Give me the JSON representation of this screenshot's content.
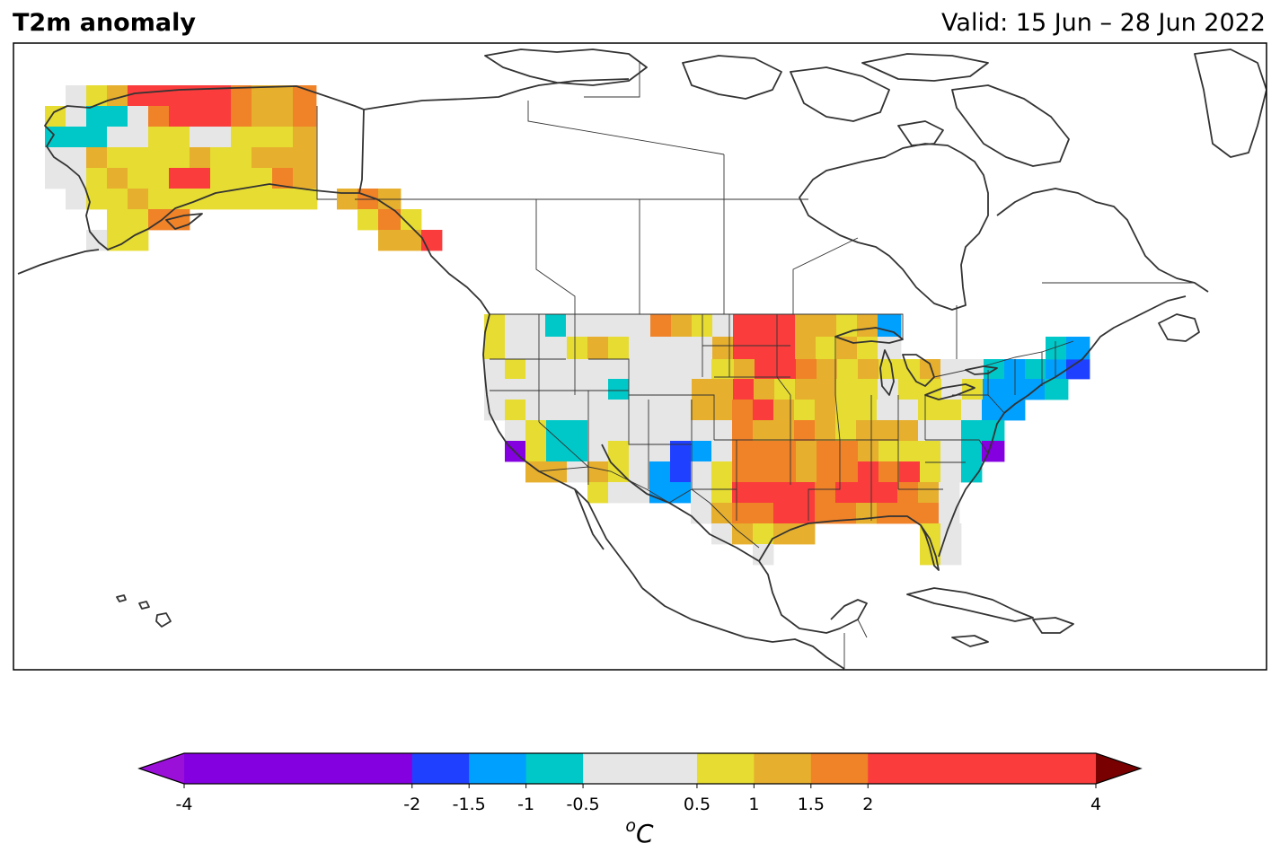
{
  "header": {
    "variable_title": "T2m anomaly",
    "valid_label": "Valid: 15 Jun – 28 Jun 2022"
  },
  "colorbar": {
    "unit_base": "C",
    "unit_sup": "o",
    "levels": [
      -4,
      -2,
      -1.5,
      -1,
      -0.5,
      0.5,
      1,
      1.5,
      2,
      4
    ],
    "tick_labels": [
      "-4",
      "-2",
      "-1.5",
      "-1",
      "-0.5",
      "0.5",
      "1",
      "1.5",
      "2",
      "4"
    ],
    "colors": [
      "#8400e0",
      "#2040ff",
      "#00a0ff",
      "#00c8c8",
      "#e6e6e6",
      "#e6dc32",
      "#e6af2d",
      "#f08228",
      "#fa3c3c"
    ],
    "under_color": "#9a10d8",
    "over_color": "#780000"
  },
  "map": {
    "region": "North America",
    "coastline_color": "#333333",
    "frame_color": "#000000"
  }
}
